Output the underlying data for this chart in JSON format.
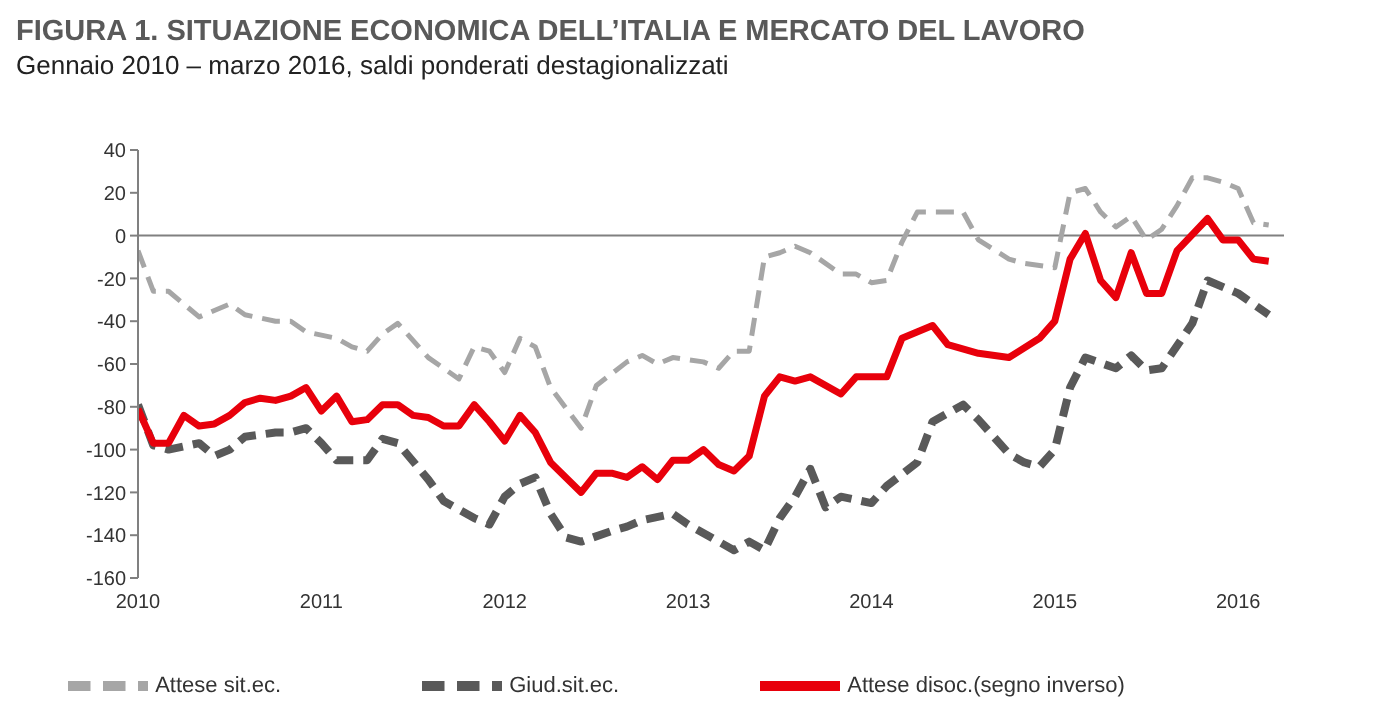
{
  "chart_data": {
    "type": "line",
    "title": "FIGURA 1. SITUAZIONE ECONOMICA DELL’ITALIA E MERCATO DEL LAVORO",
    "subtitle": "Gennaio 2010 – marzo 2016, saldi ponderati destagionalizzati",
    "xlim": [
      "2010-01",
      "2016-04"
    ],
    "xticks": [
      "2010",
      "2011",
      "2012",
      "2013",
      "2014",
      "2015",
      "2016"
    ],
    "ylim": [
      -160,
      40
    ],
    "yticks": [
      -160,
      -140,
      -120,
      -100,
      -80,
      -60,
      -40,
      -20,
      0,
      20,
      40
    ],
    "legend": "bottom",
    "marker": "none",
    "ref_lines": [
      {
        "axis": "y",
        "value": 0,
        "color": "#808080"
      }
    ],
    "series": [
      {
        "name": "Attese sit.ec.",
        "color": "#a6a6a6",
        "line_style": "dashed",
        "x": [
          "2010-01",
          "2010-02",
          "2010-03",
          "2010-04",
          "2010-05",
          "2010-06",
          "2010-07",
          "2010-08",
          "2010-10",
          "2010-11",
          "2010-12",
          "2011-02",
          "2011-03",
          "2011-04",
          "2011-05",
          "2011-06",
          "2011-08",
          "2011-10",
          "2011-11",
          "2011-12",
          "2012-01",
          "2012-02",
          "2012-03",
          "2012-04",
          "2012-06",
          "2012-07",
          "2012-09",
          "2012-10",
          "2012-11",
          "2012-12",
          "2013-02",
          "2013-03",
          "2013-04",
          "2013-05",
          "2013-06",
          "2013-07",
          "2013-08",
          "2013-09",
          "2013-11",
          "2013-12",
          "2014-01",
          "2014-02",
          "2014-03",
          "2014-04",
          "2014-05",
          "2014-07",
          "2014-08",
          "2014-10",
          "2014-11",
          "2015-01",
          "2015-02",
          "2015-03",
          "2015-04",
          "2015-05",
          "2015-06",
          "2015-07",
          "2015-08",
          "2015-09",
          "2015-10",
          "2015-11",
          "2015-12",
          "2016-01",
          "2016-02",
          "2016-03"
        ],
        "values": [
          -7,
          -26,
          -26,
          -32,
          -38,
          -35,
          -32,
          -37,
          -40,
          -40,
          -45,
          -48,
          -52,
          -54,
          -46,
          -41,
          -57,
          -67,
          -52,
          -54,
          -64,
          -48,
          -52,
          -71,
          -90,
          -70,
          -59,
          -56,
          -60,
          -57,
          -59,
          -62,
          -54,
          -54,
          -10,
          -8,
          -5,
          -8,
          -18,
          -18,
          -22,
          -21,
          -3,
          11,
          11,
          11,
          -2,
          -11,
          -13,
          -15,
          20,
          22,
          11,
          4,
          9,
          -2,
          3,
          14,
          27,
          27,
          25,
          22,
          6,
          5
        ]
      },
      {
        "name": "Giud.sit.ec.",
        "color": "#595959",
        "line_style": "dashed",
        "x": [
          "2010-01",
          "2010-02",
          "2010-03",
          "2010-05",
          "2010-06",
          "2010-07",
          "2010-08",
          "2010-10",
          "2010-11",
          "2010-12",
          "2011-01",
          "2011-02",
          "2011-04",
          "2011-05",
          "2011-06",
          "2011-08",
          "2011-09",
          "2011-11",
          "2011-12",
          "2012-01",
          "2012-02",
          "2012-03",
          "2012-04",
          "2012-05",
          "2012-06",
          "2012-08",
          "2012-09",
          "2012-10",
          "2012-12",
          "2013-01",
          "2013-03",
          "2013-04",
          "2013-05",
          "2013-06",
          "2013-07",
          "2013-08",
          "2013-09",
          "2013-10",
          "2013-11",
          "2014-01",
          "2014-02",
          "2014-04",
          "2014-05",
          "2014-07",
          "2014-08",
          "2014-10",
          "2014-11",
          "2014-12",
          "2015-01",
          "2015-02",
          "2015-03",
          "2015-05",
          "2015-06",
          "2015-07",
          "2015-08",
          "2015-10",
          "2015-11",
          "2016-01",
          "2016-03"
        ],
        "values": [
          -79,
          -98,
          -100,
          -97,
          -103,
          -100,
          -94,
          -92,
          -92,
          -90,
          -97,
          -105,
          -105,
          -95,
          -97,
          -114,
          -124,
          -132,
          -135,
          -122,
          -116,
          -113,
          -130,
          -141,
          -143,
          -138,
          -136,
          -133,
          -130,
          -135,
          -143,
          -147,
          -143,
          -147,
          -132,
          -122,
          -109,
          -127,
          -122,
          -125,
          -117,
          -106,
          -87,
          -79,
          -86,
          -102,
          -106,
          -108,
          -100,
          -71,
          -57,
          -62,
          -56,
          -63,
          -62,
          -41,
          -21,
          -27,
          -37
        ]
      },
      {
        "name": "Attese disoc.(segno inverso)",
        "color": "#e8000b",
        "line_style": "solid",
        "x": [
          "2010-01",
          "2010-02",
          "2010-03",
          "2010-04",
          "2010-05",
          "2010-06",
          "2010-07",
          "2010-08",
          "2010-09",
          "2010-10",
          "2010-11",
          "2010-12",
          "2011-01",
          "2011-02",
          "2011-03",
          "2011-04",
          "2011-05",
          "2011-06",
          "2011-07",
          "2011-08",
          "2011-09",
          "2011-10",
          "2011-11",
          "2011-12",
          "2012-01",
          "2012-02",
          "2012-03",
          "2012-04",
          "2012-05",
          "2012-06",
          "2012-07",
          "2012-08",
          "2012-09",
          "2012-10",
          "2012-11",
          "2012-12",
          "2013-01",
          "2013-02",
          "2013-03",
          "2013-04",
          "2013-05",
          "2013-06",
          "2013-07",
          "2013-08",
          "2013-09",
          "2013-11",
          "2013-12",
          "2014-02",
          "2014-03",
          "2014-05",
          "2014-06",
          "2014-08",
          "2014-10",
          "2014-12",
          "2015-01",
          "2015-02",
          "2015-03",
          "2015-04",
          "2015-05",
          "2015-06",
          "2015-07",
          "2015-08",
          "2015-09",
          "2015-11",
          "2015-12",
          "2016-01",
          "2016-02",
          "2016-03"
        ],
        "values": [
          -81,
          -97,
          -97,
          -84,
          -89,
          -88,
          -84,
          -78,
          -76,
          -77,
          -75,
          -71,
          -82,
          -75,
          -87,
          -86,
          -79,
          -79,
          -84,
          -85,
          -89,
          -89,
          -79,
          -87,
          -96,
          -84,
          -92,
          -106,
          -113,
          -120,
          -111,
          -111,
          -113,
          -108,
          -114,
          -105,
          -105,
          -100,
          -107,
          -110,
          -103,
          -75,
          -66,
          -68,
          -66,
          -74,
          -66,
          -66,
          -48,
          -42,
          -51,
          -55,
          -57,
          -48,
          -40,
          -11,
          1,
          -21,
          -29,
          -8,
          -27,
          -27,
          -7,
          8,
          -2,
          -2,
          -11,
          -12
        ]
      }
    ]
  }
}
